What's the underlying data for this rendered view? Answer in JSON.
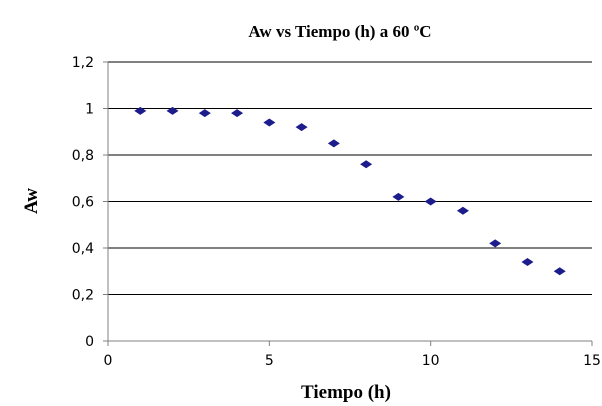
{
  "chart_data": {
    "type": "scatter",
    "title": "Aw vs Tiempo (h) a 60 ºC",
    "xlabel": "Tiempo (h)",
    "ylabel": "Aw",
    "xlim": [
      0,
      15
    ],
    "ylim": [
      0,
      1.2
    ],
    "x_ticks": [
      "0",
      "5",
      "10",
      "15"
    ],
    "y_ticks": [
      "0",
      "0,2",
      "0,4",
      "0,6",
      "0,8",
      "1",
      "1,2"
    ],
    "grid": "horizontal",
    "legend": "none",
    "marker": "diamond",
    "marker_color": "#1c1c8c",
    "series": [
      {
        "x": [
          1,
          2,
          3,
          4,
          5,
          6,
          7,
          8,
          9,
          10,
          11,
          12,
          13,
          14
        ],
        "y": [
          0.99,
          0.99,
          0.98,
          0.98,
          0.94,
          0.92,
          0.85,
          0.76,
          0.62,
          0.6,
          0.56,
          0.42,
          0.34,
          0.3
        ]
      }
    ]
  }
}
